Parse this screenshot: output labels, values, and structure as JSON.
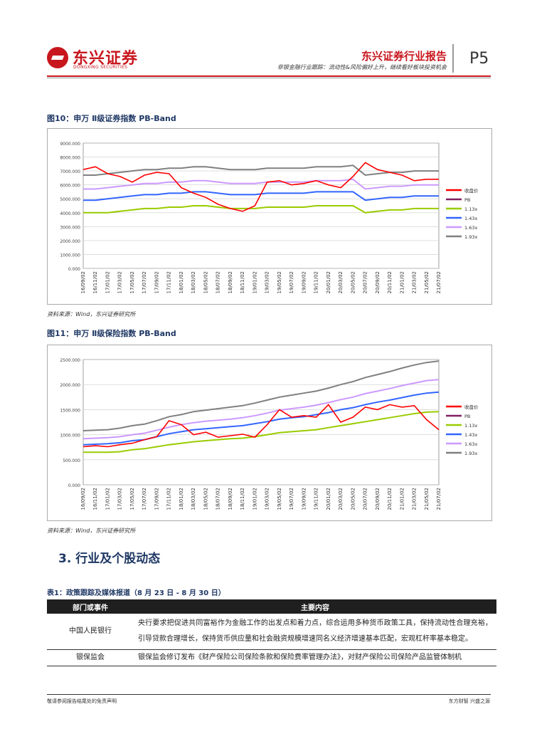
{
  "header": {
    "logo_cn": "东兴证券",
    "logo_en": "DONGXING SECURITIES",
    "report_title": "东兴证券行业报告",
    "report_subtitle": "非银金融行业跟踪：流动性&风险偏好上升，继续看好板块投资机会",
    "page_number": "P5"
  },
  "fig10": {
    "title": "图10：申万 Ⅱ级证券指数 PB-Band",
    "source": "资料来源：Wind，东兴证券研究所"
  },
  "fig11": {
    "title": "图11：申万 Ⅱ级保险指数 PB-Band",
    "source": "资料来源：Wind，东兴证券研究所"
  },
  "chart_data": [
    {
      "type": "line",
      "title": "申万 Ⅱ级证券指数 PB-Band",
      "ylim": [
        0,
        9000
      ],
      "yticks": [
        "9000.000",
        "8000.000",
        "7000.000",
        "6000.000",
        "5000.000",
        "4000.000",
        "3000.000",
        "2000.000",
        "1000.000",
        "0.000"
      ],
      "categories": [
        "16/09/02",
        "16/11/02",
        "17/01/02",
        "17/03/02",
        "17/05/02",
        "17/07/02",
        "17/09/02",
        "17/11/02",
        "18/01/02",
        "18/03/02",
        "18/05/02",
        "18/07/02",
        "18/09/02",
        "18/11/02",
        "19/01/02",
        "19/03/02",
        "19/05/02",
        "19/07/02",
        "19/09/02",
        "19/11/02",
        "20/01/02",
        "20/03/02",
        "20/05/02",
        "20/07/02",
        "20/09/02",
        "20/11/02",
        "21/01/02",
        "21/03/02",
        "21/05/02",
        "21/07/02"
      ],
      "legend": [
        "收盘价",
        "PB",
        "1.13x",
        "1.43x",
        "1.63x",
        "1.93x"
      ],
      "colors": [
        "#ff0000",
        "#7f2060",
        "#99cc00",
        "#3366ff",
        "#cc99ff",
        "#808080"
      ],
      "series": [
        {
          "name": "收盘价",
          "values": [
            7100,
            7300,
            6800,
            6600,
            6200,
            6700,
            6900,
            6800,
            5800,
            5400,
            5100,
            4600,
            4300,
            4100,
            4500,
            6200,
            6300,
            6000,
            6100,
            6300,
            6000,
            5800,
            6600,
            7600,
            7100,
            6900,
            6700,
            6300,
            6400,
            6400
          ]
        },
        {
          "name": "1.13x",
          "values": [
            4000,
            4000,
            4000,
            4100,
            4200,
            4300,
            4300,
            4400,
            4400,
            4500,
            4500,
            4400,
            4300,
            4300,
            4300,
            4400,
            4400,
            4400,
            4400,
            4500,
            4500,
            4500,
            4500,
            4000,
            4100,
            4200,
            4200,
            4300,
            4300,
            4300
          ]
        },
        {
          "name": "1.43x",
          "values": [
            4900,
            4900,
            5000,
            5100,
            5200,
            5300,
            5300,
            5400,
            5400,
            5500,
            5500,
            5400,
            5300,
            5300,
            5300,
            5400,
            5400,
            5400,
            5400,
            5500,
            5500,
            5500,
            5500,
            4900,
            5000,
            5100,
            5100,
            5200,
            5200,
            5200
          ]
        },
        {
          "name": "1.63x",
          "values": [
            5700,
            5700,
            5800,
            5900,
            6000,
            6100,
            6100,
            6200,
            6200,
            6300,
            6300,
            6200,
            6100,
            6100,
            6100,
            6200,
            6200,
            6200,
            6200,
            6300,
            6300,
            6300,
            6400,
            5700,
            5800,
            5900,
            5900,
            6000,
            6000,
            6000
          ]
        },
        {
          "name": "1.93x",
          "values": [
            6700,
            6700,
            6800,
            6900,
            7000,
            7100,
            7100,
            7200,
            7200,
            7300,
            7300,
            7200,
            7100,
            7100,
            7100,
            7200,
            7200,
            7200,
            7200,
            7300,
            7300,
            7300,
            7400,
            6700,
            6800,
            6900,
            6900,
            7000,
            7000,
            7000
          ]
        }
      ]
    },
    {
      "type": "line",
      "title": "申万 Ⅱ级保险指数 PB-Band",
      "ylim": [
        0,
        2500
      ],
      "yticks": [
        "2500.000",
        "2000.000",
        "1500.000",
        "1000.000",
        "500.000",
        "0.000"
      ],
      "categories": [
        "16/09/02",
        "16/11/02",
        "17/01/02",
        "17/03/02",
        "17/05/02",
        "17/07/02",
        "17/09/02",
        "17/11/02",
        "18/01/02",
        "18/03/02",
        "18/05/02",
        "18/07/02",
        "18/09/02",
        "18/11/02",
        "19/01/02",
        "19/03/02",
        "19/05/02",
        "19/07/02",
        "19/09/02",
        "19/11/02",
        "20/01/02",
        "20/03/02",
        "20/05/02",
        "20/07/02",
        "20/09/02",
        "20/11/02",
        "21/01/02",
        "21/03/02",
        "21/05/02",
        "21/07/02"
      ],
      "legend": [
        "收盘价",
        "PB",
        "1.13x",
        "1.43x",
        "1.63x",
        "1.93x"
      ],
      "colors": [
        "#ff0000",
        "#7f2060",
        "#99cc00",
        "#3366ff",
        "#cc99ff",
        "#808080"
      ],
      "series": [
        {
          "name": "收盘价",
          "values": [
            760,
            780,
            760,
            800,
            830,
            900,
            960,
            1280,
            1200,
            1000,
            1050,
            950,
            980,
            1010,
            950,
            1200,
            1500,
            1350,
            1380,
            1350,
            1600,
            1250,
            1350,
            1550,
            1500,
            1600,
            1550,
            1580,
            1300,
            1100
          ]
        },
        {
          "name": "1.13x",
          "values": [
            650,
            650,
            650,
            660,
            700,
            720,
            760,
            800,
            830,
            860,
            880,
            900,
            920,
            930,
            960,
            1000,
            1040,
            1060,
            1080,
            1100,
            1140,
            1180,
            1220,
            1260,
            1300,
            1340,
            1380,
            1420,
            1450,
            1460
          ]
        },
        {
          "name": "1.43x",
          "values": [
            800,
            810,
            820,
            840,
            880,
            900,
            960,
            1020,
            1060,
            1100,
            1120,
            1140,
            1160,
            1180,
            1220,
            1260,
            1310,
            1340,
            1360,
            1400,
            1440,
            1500,
            1540,
            1600,
            1650,
            1690,
            1740,
            1790,
            1830,
            1850
          ]
        },
        {
          "name": "1.63x",
          "values": [
            920,
            930,
            940,
            960,
            1000,
            1030,
            1090,
            1150,
            1200,
            1240,
            1270,
            1290,
            1310,
            1340,
            1380,
            1430,
            1490,
            1520,
            1550,
            1590,
            1640,
            1700,
            1750,
            1820,
            1870,
            1920,
            1980,
            2030,
            2080,
            2100
          ]
        },
        {
          "name": "1.93x",
          "values": [
            1080,
            1090,
            1100,
            1130,
            1180,
            1210,
            1280,
            1360,
            1400,
            1460,
            1490,
            1520,
            1550,
            1580,
            1630,
            1690,
            1750,
            1790,
            1830,
            1870,
            1930,
            2000,
            2060,
            2140,
            2200,
            2260,
            2330,
            2390,
            2440,
            2470
          ]
        }
      ]
    }
  ],
  "section": {
    "title": "3.  行业及个股动态"
  },
  "table1": {
    "title": "表1：政策跟踪及媒体报道（8 月 23 日 - 8 月 30 日）",
    "headers": [
      "部门或事件",
      "主要内容"
    ],
    "rows": [
      {
        "dept": "中国人民银行",
        "content": "央行要求把促进共同富裕作为金融工作的出发点和着力点，综合运用多种货币政策工具，保持流动性合理充裕，引导贷款合理增长，保持货币供应量和社会融资规模增速同名义经济增速基本匹配，宏观杠杆率基本稳定。"
      },
      {
        "dept": "银保监会",
        "content": "银保监会修订发布《财产保险公司保险条款和保险费率管理办法》，对财产保险公司保险产品监管体制机"
      }
    ]
  },
  "footer": {
    "left": "敬请参阅报告结尾处的免责声明",
    "right": "东方财智  兴盛之源"
  }
}
